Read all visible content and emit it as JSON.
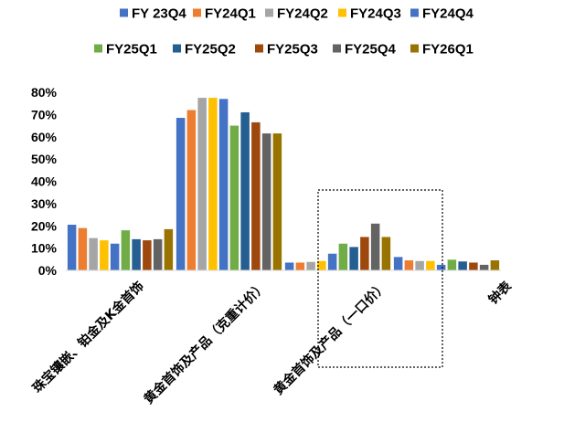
{
  "chart_data": {
    "type": "bar",
    "categories": [
      "珠宝镶嵌、铂金及K金首饰",
      "黄金首饰及产品（克重计价）",
      "黄金首饰及产品（一口价）",
      "钟表"
    ],
    "series": [
      {
        "name": "FY 23Q4",
        "color": "#4472c4",
        "values": [
          20.5,
          68.5,
          3.5,
          6
        ]
      },
      {
        "name": "FY24Q1",
        "color": "#ed7d31",
        "values": [
          19,
          72,
          3.5,
          4.5
        ]
      },
      {
        "name": "FY24Q2",
        "color": "#a5a5a5",
        "values": [
          14.5,
          77.5,
          3.8,
          4.2
        ]
      },
      {
        "name": "FY24Q3",
        "color": "#ffc000",
        "values": [
          13.5,
          77.5,
          4.2,
          4.2
        ]
      },
      {
        "name": "FY24Q4",
        "color": "#4472c4",
        "values": [
          12,
          77,
          7.5,
          2.5
        ]
      },
      {
        "name": "FY25Q1",
        "color": "#70ad47",
        "values": [
          18,
          65,
          12,
          4.8
        ]
      },
      {
        "name": "FY25Q2",
        "color": "#255e91",
        "values": [
          14,
          71,
          10.5,
          4
        ]
      },
      {
        "name": "FY25Q3",
        "color": "#9e480e",
        "values": [
          13.5,
          66.5,
          15,
          3.5
        ]
      },
      {
        "name": "FY25Q4",
        "color": "#636363",
        "values": [
          14,
          61.5,
          21,
          2.5
        ]
      },
      {
        "name": "FY26Q1",
        "color": "#997300",
        "values": [
          18.5,
          61.5,
          15,
          4.5
        ]
      }
    ],
    "yticks": [
      "0%",
      "10%",
      "20%",
      "30%",
      "40%",
      "50%",
      "60%",
      "70%",
      "80%"
    ],
    "ylim": [
      0,
      80
    ],
    "y_unit": "%",
    "grid": false,
    "legend_position": "top",
    "highlighted_category": "黄金首饰及产品（一口价）"
  }
}
